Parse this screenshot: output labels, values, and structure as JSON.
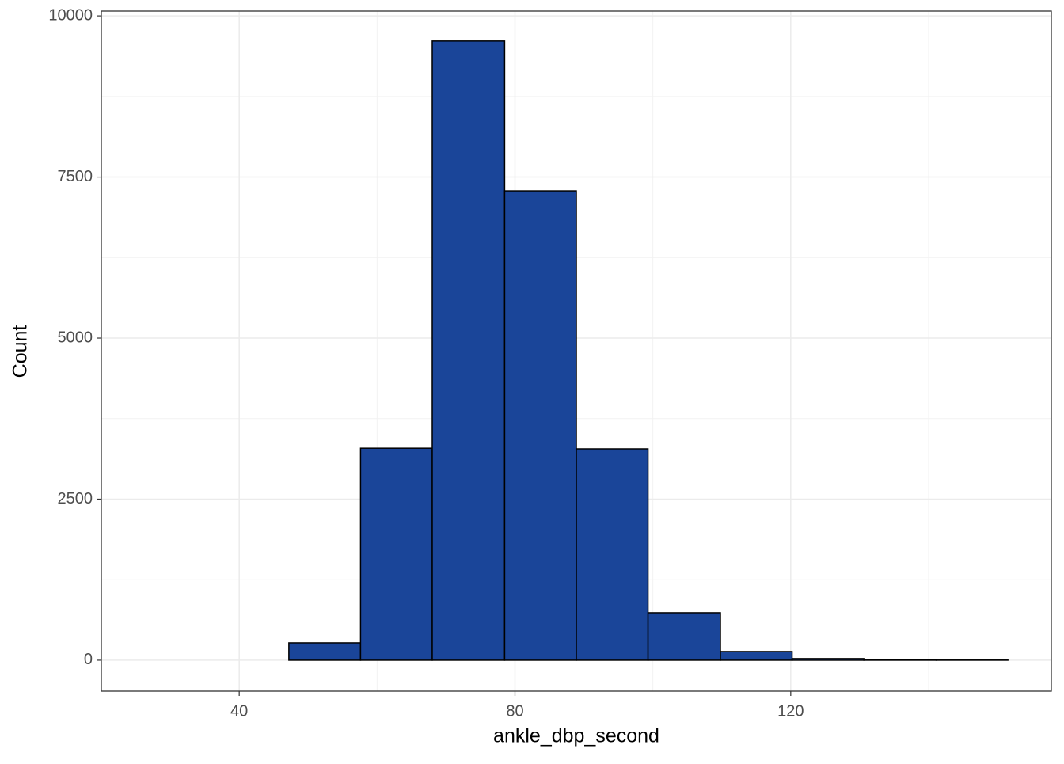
{
  "chart_data": {
    "type": "histogram",
    "x_label": "ankle_dbp_second",
    "y_label": "Count",
    "bins": [
      26.3,
      36.7,
      47.2,
      57.6,
      68.0,
      78.5,
      88.9,
      99.3,
      109.8,
      120.2,
      130.6,
      141.1,
      151.5
    ],
    "values": [
      0,
      0,
      270,
      3290,
      9610,
      7285,
      3280,
      737,
      135,
      25,
      5,
      2
    ],
    "color": "#1a4599",
    "edge_color": "#000000",
    "xlim": [
      20.0,
      157.8
    ],
    "xticks": [
      40,
      80,
      120
    ],
    "ylim": [
      -480,
      10075
    ],
    "yticks": [
      0,
      2500,
      5000,
      7500,
      10000
    ],
    "grid": true
  }
}
